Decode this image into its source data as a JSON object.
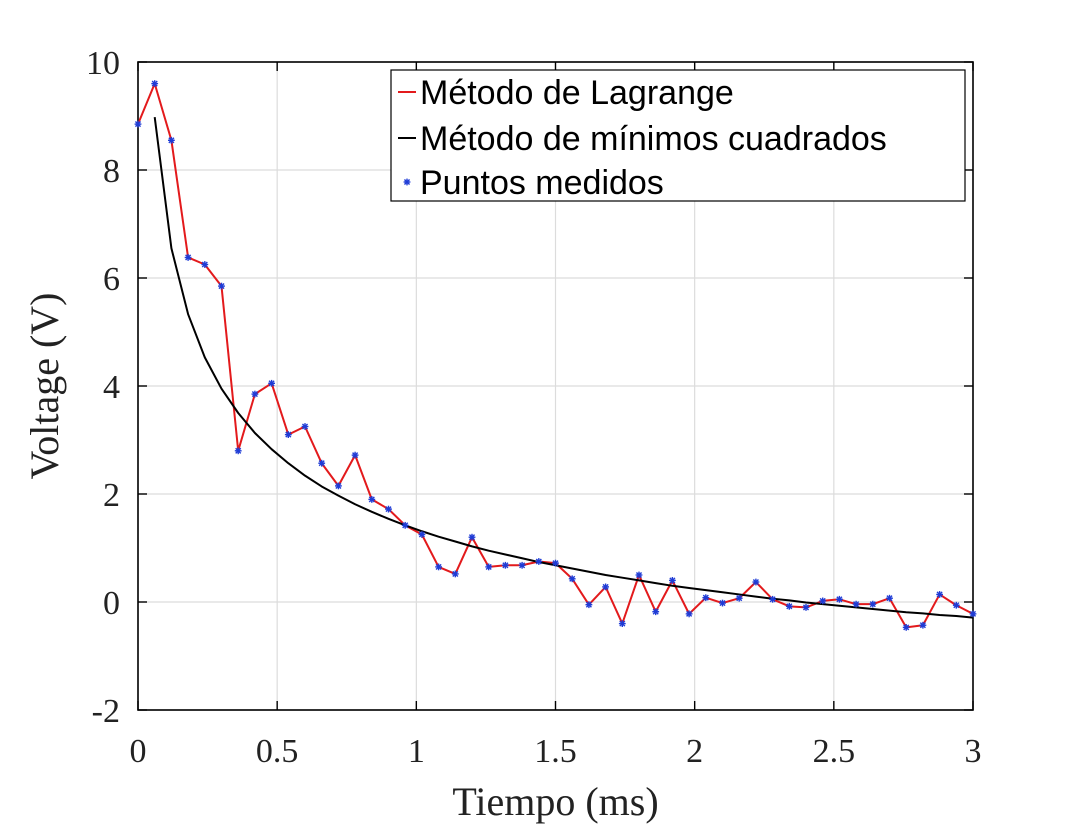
{
  "chart_data": {
    "type": "line",
    "title": "",
    "xlabel": "Tiempo (ms)",
    "ylabel": "Voltage (V)",
    "xlim": [
      0,
      3
    ],
    "ylim": [
      -2,
      10
    ],
    "xticks": [
      0,
      0.5,
      1,
      1.5,
      2,
      2.5,
      3
    ],
    "xtick_labels": [
      "0",
      "0.5",
      "1",
      "1.5",
      "2",
      "2.5",
      "3"
    ],
    "yticks": [
      -2,
      0,
      2,
      4,
      6,
      8,
      10
    ],
    "ytick_labels": [
      "-2",
      "0",
      "2",
      "4",
      "6",
      "8",
      "10"
    ],
    "grid": true,
    "legend_position": "top-right",
    "series": [
      {
        "name": "Método de Lagrange",
        "color": "#e31a1c",
        "style": "line",
        "x": [
          0,
          0.06,
          0.12,
          0.18,
          0.24,
          0.3,
          0.36,
          0.42,
          0.48,
          0.54,
          0.6,
          0.66,
          0.72,
          0.78,
          0.84,
          0.9,
          0.96,
          1.02,
          1.08,
          1.14,
          1.2,
          1.26,
          1.32,
          1.38,
          1.44,
          1.5,
          1.56,
          1.62,
          1.68,
          1.74,
          1.8,
          1.86,
          1.92,
          1.98,
          2.04,
          2.1,
          2.16,
          2.22,
          2.28,
          2.34,
          2.4,
          2.46,
          2.52,
          2.58,
          2.64,
          2.7,
          2.76,
          2.82,
          2.88,
          2.94,
          3.0
        ],
        "y": [
          8.85,
          9.6,
          8.55,
          6.38,
          6.25,
          5.85,
          2.8,
          3.85,
          4.05,
          3.1,
          3.25,
          2.57,
          2.15,
          2.72,
          1.9,
          1.72,
          1.42,
          1.25,
          0.65,
          0.52,
          1.2,
          0.65,
          0.68,
          0.68,
          0.75,
          0.72,
          0.43,
          -0.05,
          0.28,
          -0.4,
          0.5,
          -0.18,
          0.4,
          -0.22,
          0.08,
          -0.02,
          0.07,
          0.37,
          0.05,
          -0.08,
          -0.1,
          0.02,
          0.05,
          -0.04,
          -0.04,
          0.07,
          -0.47,
          -0.43,
          0.14,
          -0.06,
          -0.22
        ]
      },
      {
        "name": "Método de mínimos cuadrados",
        "color": "#000000",
        "style": "line",
        "x": [
          0.06,
          0.12,
          0.18,
          0.24,
          0.3,
          0.36,
          0.42,
          0.48,
          0.54,
          0.6,
          0.66,
          0.72,
          0.78,
          0.84,
          0.9,
          0.96,
          1.02,
          1.08,
          1.14,
          1.2,
          1.26,
          1.32,
          1.38,
          1.44,
          1.5,
          1.56,
          1.62,
          1.68,
          1.74,
          1.8,
          1.86,
          1.92,
          1.98,
          2.04,
          2.1,
          2.16,
          2.22,
          2.28,
          2.34,
          2.4,
          2.46,
          2.52,
          2.58,
          2.64,
          2.7,
          2.76,
          2.82,
          2.88,
          2.94,
          3.0
        ],
        "y": [
          8.98,
          6.55,
          5.33,
          4.53,
          3.95,
          3.5,
          3.13,
          2.83,
          2.57,
          2.34,
          2.14,
          1.97,
          1.81,
          1.67,
          1.54,
          1.42,
          1.31,
          1.21,
          1.12,
          1.03,
          0.95,
          0.88,
          0.81,
          0.74,
          0.68,
          0.62,
          0.56,
          0.5,
          0.45,
          0.4,
          0.35,
          0.3,
          0.26,
          0.22,
          0.18,
          0.14,
          0.1,
          0.06,
          0.03,
          -0.01,
          -0.04,
          -0.07,
          -0.1,
          -0.13,
          -0.16,
          -0.19,
          -0.21,
          -0.24,
          -0.26,
          -0.29
        ]
      },
      {
        "name": "Puntos medidos",
        "color": "#1f3cd6",
        "style": "markers",
        "marker": "*",
        "x": [
          0,
          0.06,
          0.12,
          0.18,
          0.24,
          0.3,
          0.36,
          0.42,
          0.48,
          0.54,
          0.6,
          0.66,
          0.72,
          0.78,
          0.84,
          0.9,
          0.96,
          1.02,
          1.08,
          1.14,
          1.2,
          1.26,
          1.32,
          1.38,
          1.44,
          1.5,
          1.56,
          1.62,
          1.68,
          1.74,
          1.8,
          1.86,
          1.92,
          1.98,
          2.04,
          2.1,
          2.16,
          2.22,
          2.28,
          2.34,
          2.4,
          2.46,
          2.52,
          2.58,
          2.64,
          2.7,
          2.76,
          2.82,
          2.88,
          2.94,
          3.0
        ],
        "y": [
          8.85,
          9.6,
          8.55,
          6.38,
          6.25,
          5.85,
          2.8,
          3.85,
          4.05,
          3.1,
          3.25,
          2.57,
          2.15,
          2.72,
          1.9,
          1.72,
          1.42,
          1.25,
          0.65,
          0.52,
          1.2,
          0.65,
          0.68,
          0.68,
          0.75,
          0.72,
          0.43,
          -0.05,
          0.28,
          -0.4,
          0.5,
          -0.18,
          0.4,
          -0.22,
          0.08,
          -0.02,
          0.07,
          0.37,
          0.05,
          -0.08,
          -0.1,
          0.02,
          0.05,
          -0.04,
          -0.04,
          0.07,
          -0.47,
          -0.43,
          0.14,
          -0.06,
          -0.22
        ]
      }
    ]
  }
}
